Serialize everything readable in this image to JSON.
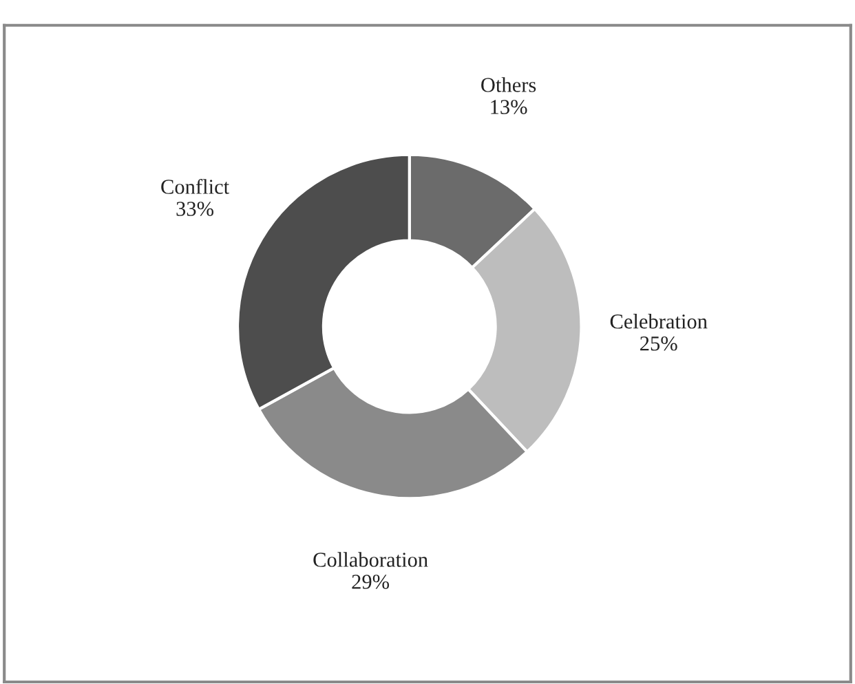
{
  "chart_data": {
    "type": "donut",
    "categories": [
      "Others",
      "Celebration",
      "Collaboration",
      "Conflict"
    ],
    "values": [
      13,
      25,
      29,
      33
    ],
    "value_labels": [
      "13%",
      "25%",
      "29%",
      "33%"
    ],
    "colors": [
      "#6b6b6b",
      "#bdbdbd",
      "#8a8a8a",
      "#4d4d4d"
    ],
    "legend": false
  }
}
